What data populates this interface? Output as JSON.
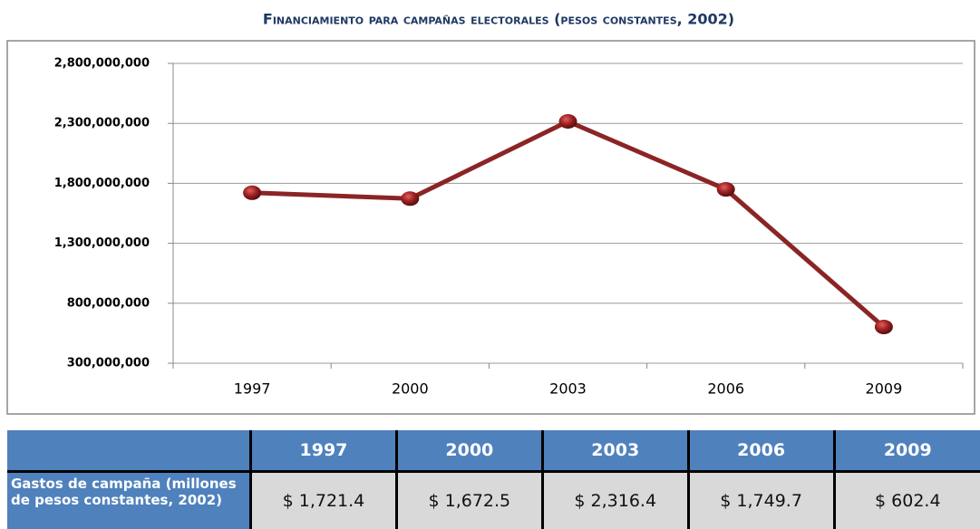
{
  "chart_data": {
    "type": "line",
    "title": "Financiamiento para campañas electorales (pesos constantes, 2002)",
    "categories": [
      "1997",
      "2000",
      "2003",
      "2006",
      "2009"
    ],
    "values": [
      1721400000,
      1672500000,
      2316400000,
      1749700000,
      602400000
    ],
    "color": "#8b2525",
    "ylim": [
      300000000,
      2800000000
    ],
    "yticks": [
      {
        "value": 300000000,
        "label": "300,000,000"
      },
      {
        "value": 800000000,
        "label": "800,000,000"
      },
      {
        "value": 1300000000,
        "label": "1,300,000,000"
      },
      {
        "value": 1800000000,
        "label": "1,800,000,000"
      },
      {
        "value": 2300000000,
        "label": "2,300,000,000"
      },
      {
        "value": 2800000000,
        "label": "2,800,000,000"
      }
    ],
    "grid": true
  },
  "table": {
    "columns": [
      "1997",
      "2000",
      "2003",
      "2006",
      "2009"
    ],
    "row_label": "Gastos de campaña (millones de pesos constantes, 2002)",
    "values": [
      "$ 1,721.4",
      "$ 1,672.5",
      "$ 2,316.4",
      "$ 1,749.7",
      "$ 602.4"
    ]
  }
}
